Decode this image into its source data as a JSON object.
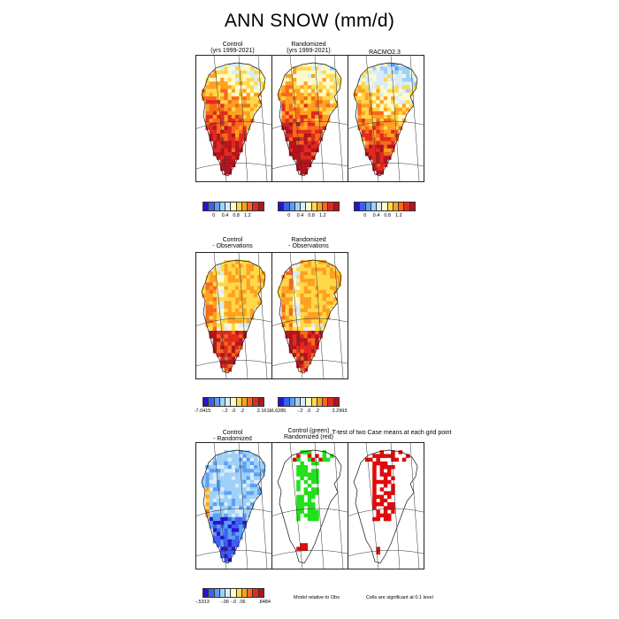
{
  "title": "ANN SNOW (mm/d)",
  "panels": [
    {
      "id": "p1",
      "title": [
        "Control",
        "(yrs 1999-2021)"
      ],
      "kind": "abs"
    },
    {
      "id": "p2",
      "title": [
        "Randomized",
        "(yrs 1999-2021)"
      ],
      "kind": "abs"
    },
    {
      "id": "p3",
      "title": [
        "RACMO2.3"
      ],
      "kind": "obs"
    },
    {
      "id": "p4",
      "title": [
        "Control",
        "- Observations"
      ],
      "kind": "diffobs"
    },
    {
      "id": "p5",
      "title": [
        "Randomized",
        "- Observations"
      ],
      "kind": "diffobs"
    },
    {
      "id": "p6",
      "title": [
        "Control",
        "- Randomized"
      ],
      "kind": "diffmod"
    },
    {
      "id": "p7",
      "title": [
        "Control (green)",
        "Randomized (red)"
      ],
      "kind": "sigmodel"
    },
    {
      "id": "p8",
      "title": [
        "T-test of two Case means at each grid point"
      ],
      "kind": "sigtest"
    }
  ],
  "colorbars": [
    {
      "id": "cb1",
      "labels": [
        "0",
        "0.4",
        "0.8",
        "1.2"
      ]
    },
    {
      "id": "cb2",
      "labels": [
        "0",
        "0.4",
        "0.8",
        "1.2"
      ]
    },
    {
      "id": "cb3",
      "labels": [
        "0",
        "0.4",
        "0.8",
        "1.2"
      ]
    },
    {
      "id": "cb4",
      "labels": [
        "-7.0415",
        "-.2",
        ".0",
        ".2",
        "2.1611"
      ]
    },
    {
      "id": "cb5",
      "labels": [
        "-6.6285",
        "-.2",
        ".0",
        ".2",
        "2.2993"
      ]
    },
    {
      "id": "cb6",
      "labels": [
        "-.5313",
        "-.06",
        "-.0",
        ".06",
        ".8484"
      ]
    }
  ],
  "notes": {
    "model_relative": "Model relative to Obs",
    "significant": "Cells are significant at 0.1 level"
  },
  "palette": [
    "#2a14c8",
    "#3f5ff0",
    "#5aa0f5",
    "#9fd0f8",
    "#d8ecfb",
    "#fffac8",
    "#ffd84a",
    "#ffa020",
    "#f56a1a",
    "#e02a20",
    "#b4141e"
  ],
  "sig_colors": {
    "control": "#22e01a",
    "randomized": "#e00a0a"
  }
}
